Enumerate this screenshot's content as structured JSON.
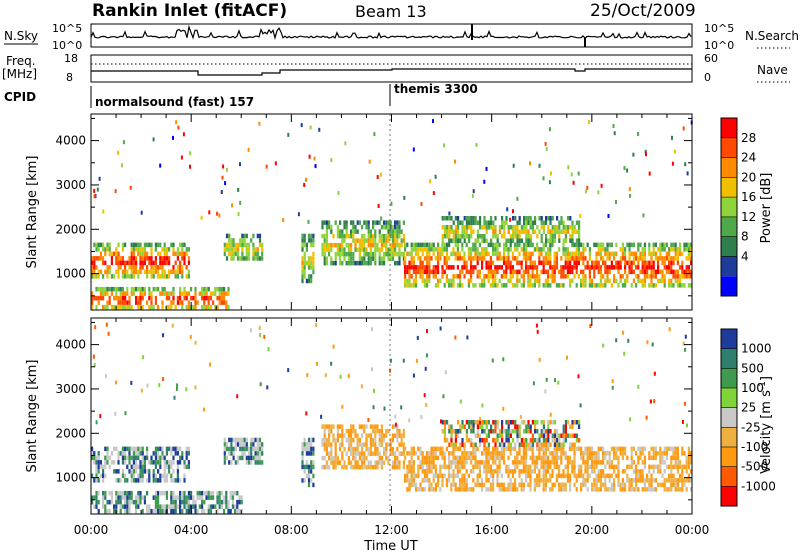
{
  "header": {
    "station": "Rankin Inlet (fitACF)",
    "beam": "Beam 13",
    "date": "25/Oct/2009"
  },
  "nsky_panel": {
    "left_label": "N.Sky",
    "right_label": "N.Search",
    "ticks_left": [
      "10^5",
      "10^0"
    ],
    "ticks_right": [
      "10^5",
      "10^0"
    ]
  },
  "freq_panel": {
    "label_line1": "Freq.",
    "label_line2": "[MHz]",
    "right_label": "Nave",
    "ticks_left": [
      "18",
      "8"
    ],
    "ticks_right": [
      "60",
      "0"
    ]
  },
  "cpid_panel": {
    "label": "CPID",
    "programs": [
      {
        "name": "normalsound (fast) 157",
        "start_hour": 0
      },
      {
        "name": "themis 3300",
        "start_hour": 12
      }
    ]
  },
  "chart_data": [
    {
      "type": "heatmap",
      "panel": "power",
      "ylabel": "Slant Range [km]",
      "xlabel": "Time UT",
      "x_ticks": [
        "00:00",
        "04:00",
        "08:00",
        "12:00",
        "16:00",
        "20:00",
        "00:00"
      ],
      "xlim_hours": [
        0,
        24
      ],
      "y_ticks": [
        1000,
        2000,
        3000,
        4000
      ],
      "ylim": [
        180,
        4600
      ],
      "colorbar": {
        "title": "Power [dB]",
        "labels": [
          "28",
          "24",
          "20",
          "16",
          "12",
          "8",
          "4"
        ],
        "colors": [
          "#0000ff",
          "#1e3d9a",
          "#2f7f4e",
          "#4fa84a",
          "#8fd43a",
          "#f0c000",
          "#ff8a00",
          "#ff4a00",
          "#ff0000"
        ]
      },
      "regions": [
        {
          "t0": 0.0,
          "t1": 3.9,
          "r0": 900,
          "r1": 1700,
          "level": "high"
        },
        {
          "t0": 0.0,
          "t1": 5.5,
          "r0": 200,
          "r1": 700,
          "level": "high"
        },
        {
          "t0": 5.3,
          "t1": 6.8,
          "r0": 1300,
          "r1": 1900,
          "level": "mid"
        },
        {
          "t0": 8.4,
          "t1": 8.9,
          "r0": 800,
          "r1": 1900,
          "level": "mid"
        },
        {
          "t0": 9.2,
          "t1": 12.5,
          "r0": 1200,
          "r1": 2200,
          "level": "mid"
        },
        {
          "t0": 12.5,
          "t1": 24.0,
          "r0": 700,
          "r1": 1700,
          "level": "high"
        },
        {
          "t0": 14.0,
          "t1": 19.5,
          "r0": 1700,
          "r1": 2300,
          "level": "mid"
        }
      ]
    },
    {
      "type": "heatmap",
      "panel": "velocity",
      "ylabel": "Slant Range [km]",
      "xlabel": "Time UT",
      "x_ticks": [
        "00:00",
        "04:00",
        "08:00",
        "12:00",
        "16:00",
        "20:00",
        "00:00"
      ],
      "xlim_hours": [
        0,
        24
      ],
      "y_ticks": [
        1000,
        2000,
        3000,
        4000
      ],
      "ylim": [
        180,
        4600
      ],
      "colorbar": {
        "title": "Velocity [m s",
        "title_sup": "-1",
        "title_end": "]",
        "labels": [
          "1000",
          "500",
          "100",
          "25",
          "-25",
          "-100",
          "-500",
          "-1000"
        ],
        "colors": [
          "#ff0000",
          "#ff5a00",
          "#ff9a10",
          "#f0b040",
          "#c8c8c8",
          "#7fd43a",
          "#3f9a4e",
          "#2f7f6e",
          "#1e3d9a"
        ]
      },
      "regions": [
        {
          "t0": 0.0,
          "t1": 3.9,
          "r0": 900,
          "r1": 1700,
          "level": "toward"
        },
        {
          "t0": 0.0,
          "t1": 6.0,
          "r0": 200,
          "r1": 700,
          "level": "toward"
        },
        {
          "t0": 5.3,
          "t1": 6.8,
          "r0": 1300,
          "r1": 1900,
          "level": "toward"
        },
        {
          "t0": 8.4,
          "t1": 8.9,
          "r0": 800,
          "r1": 1900,
          "level": "toward"
        },
        {
          "t0": 9.2,
          "t1": 12.5,
          "r0": 1200,
          "r1": 2200,
          "level": "away"
        },
        {
          "t0": 12.5,
          "t1": 24.0,
          "r0": 700,
          "r1": 1700,
          "level": "away"
        },
        {
          "t0": 14.0,
          "t1": 19.5,
          "r0": 1700,
          "r1": 2300,
          "level": "mixed"
        }
      ]
    }
  ]
}
